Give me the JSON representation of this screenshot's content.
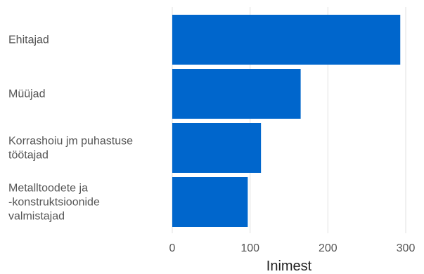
{
  "chart_data": {
    "type": "bar",
    "orientation": "horizontal",
    "categories": [
      "Ehitajad",
      "Müüjad",
      "Korrashoiu jm puhastuse\ntöötajad",
      "Metalltoodete ja\n-konstruktsioonide\nvalmistajad"
    ],
    "values": [
      293,
      165,
      114,
      97
    ],
    "xlabel": "Inimest",
    "ylabel": "",
    "title": "",
    "xlim": [
      0,
      300
    ],
    "xticks": [
      0,
      100,
      200,
      300
    ],
    "grid": true,
    "bar_color": "#0066CC",
    "grid_color": "#E6E6E6"
  }
}
